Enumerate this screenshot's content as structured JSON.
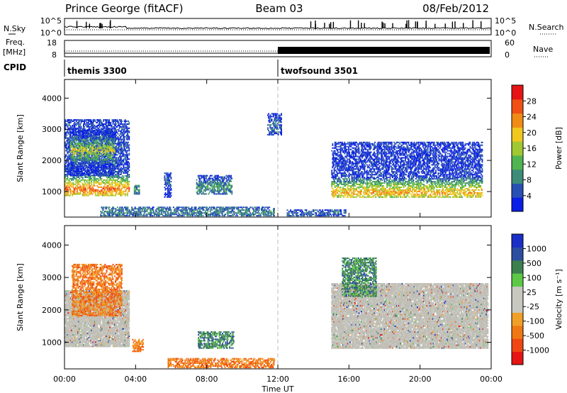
{
  "header": {
    "station": "Prince George (fitACF)",
    "beam": "Beam 03",
    "date": "08/Feb/2012"
  },
  "labels": {
    "nsky": "N.Sky",
    "nsearch": "N.Search",
    "freq": "Freq.",
    "mhz": "[MHz]",
    "nave": "Nave",
    "cpid": "CPID",
    "nsky_ticks": [
      "10^5",
      "10^0"
    ],
    "nsearch_ticks": [
      "10^5",
      "10^0"
    ],
    "freq_ticks": [
      "18",
      "8"
    ],
    "nave_ticks": [
      "60",
      "0"
    ]
  },
  "cpid": [
    {
      "name": "themis 3300",
      "start_hour": 0,
      "end_hour": 12
    },
    {
      "name": "twofsound 3501",
      "start_hour": 12,
      "end_hour": 24
    }
  ],
  "colors": {
    "power": [
      "#0a1ee6",
      "#2850b4",
      "#3c8c78",
      "#50b450",
      "#a0c832",
      "#f0c81e",
      "#f08c14",
      "#f05014",
      "#e61414"
    ],
    "velocity": [
      "#1a2ec8",
      "#2c4ea0",
      "#3c8050",
      "#5cc846",
      "#c8c8c0",
      "#c8c8c0",
      "#f0a028",
      "#f07814",
      "#f04614",
      "#e61414"
    ],
    "ground": "#bfbfb6"
  },
  "chart_data": [
    {
      "type": "heatmap",
      "quantity": "Power",
      "xlabel": "Time UT",
      "ylabel": "Slant Range [km]",
      "xlim_hours": [
        0,
        24
      ],
      "ylim_km": [
        180,
        4600
      ],
      "x_ticks": [
        "00:00",
        "04:00",
        "08:00",
        "12:00",
        "16:00",
        "20:00",
        "00:00"
      ],
      "y_ticks": [
        1000,
        2000,
        3000,
        4000
      ],
      "colorbar": {
        "label": "Power [dB]",
        "range": [
          0,
          32
        ],
        "ticks": [
          4,
          8,
          12,
          16,
          20,
          24,
          28
        ]
      },
      "regions": [
        {
          "t0": 0.0,
          "t1": 3.6,
          "r0": 850,
          "r1": 3300,
          "peak_km": 1050,
          "level": 26
        },
        {
          "t0": 0.3,
          "t1": 2.8,
          "r0": 1500,
          "r1": 3000,
          "peak_km": 2300,
          "level": 18
        },
        {
          "t0": 3.9,
          "t1": 4.2,
          "r0": 900,
          "r1": 1200,
          "peak_km": 1050,
          "level": 10
        },
        {
          "t0": 5.6,
          "t1": 6.0,
          "r0": 800,
          "r1": 1600,
          "peak_km": 1300,
          "level": 6
        },
        {
          "t0": 7.4,
          "t1": 9.4,
          "r0": 900,
          "r1": 1500,
          "peak_km": 1100,
          "level": 10
        },
        {
          "t0": 2.0,
          "t1": 11.8,
          "r0": 200,
          "r1": 500,
          "peak_km": 320,
          "level": 8
        },
        {
          "t0": 11.4,
          "t1": 12.2,
          "r0": 2800,
          "r1": 3500,
          "peak_km": 3100,
          "level": 6
        },
        {
          "t0": 15.0,
          "t1": 23.5,
          "r0": 800,
          "r1": 2600,
          "peak_km": 950,
          "level": 22
        },
        {
          "t0": 12.5,
          "t1": 15.8,
          "r0": 200,
          "r1": 400,
          "peak_km": 300,
          "level": 6
        }
      ]
    },
    {
      "type": "heatmap",
      "quantity": "Velocity",
      "xlabel": "Time UT",
      "ylabel": "Slant Range [km]",
      "xlim_hours": [
        0,
        24
      ],
      "ylim_km": [
        180,
        4600
      ],
      "x_ticks": [
        "00:00",
        "04:00",
        "08:00",
        "12:00",
        "16:00",
        "20:00",
        "00:00"
      ],
      "y_ticks": [
        1000,
        2000,
        3000,
        4000
      ],
      "colorbar": {
        "label": "Velocity [m s⁻¹]",
        "ticks": [
          "1000",
          "500",
          "100",
          "25",
          "-25",
          "-100",
          "-500",
          "-1000"
        ]
      },
      "regions": [
        {
          "t0": 0.0,
          "t1": 3.6,
          "r0": 850,
          "r1": 2600,
          "ground": true
        },
        {
          "t0": 0.4,
          "t1": 3.2,
          "r0": 1800,
          "r1": 3400,
          "velocity": -150
        },
        {
          "t0": 3.8,
          "t1": 4.4,
          "r0": 700,
          "r1": 1100,
          "velocity": -300
        },
        {
          "t0": 7.5,
          "t1": 9.5,
          "r0": 800,
          "r1": 1300,
          "velocity": 150
        },
        {
          "t0": 5.8,
          "t1": 11.8,
          "r0": 200,
          "r1": 500,
          "velocity": -120
        },
        {
          "t0": 15.0,
          "t1": 23.8,
          "r0": 800,
          "r1": 2800,
          "ground": true
        },
        {
          "t0": 15.6,
          "t1": 17.5,
          "r0": 2400,
          "r1": 3600,
          "velocity": 200
        }
      ]
    }
  ]
}
